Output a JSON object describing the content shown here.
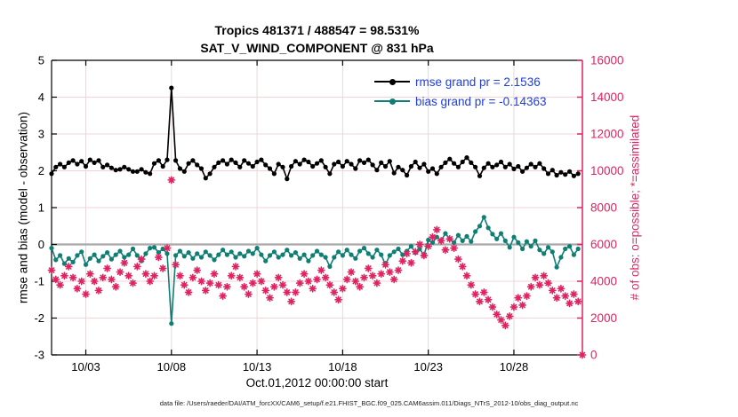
{
  "footer": {
    "text": "data file: /Users/raeder/DAI/ATM_forcXX/CAM6_setup/f.e21.FHIST_BGC.f09_025.CAM6assim.011/Diags_NTrS_2012-10/obs_diag_output.nc"
  },
  "chart_data": {
    "type": "line",
    "title": "Tropics 481371 / 488547 = 98.531%",
    "subtitle": "SAT_V_WIND_COMPONENT @ 831 hPa",
    "xlabel": "Oct.01,2012 00:00:00 start",
    "ylabel_left": "rmse and bias (model - observation)",
    "ylabel_right": "# of obs: o=possible; *=assimilated",
    "xlim": [
      0,
      31
    ],
    "x_unit_note": "days since Oct 1 2012 00:00, points every 0.25 day",
    "x_start": 0,
    "x_step": 0.25,
    "x_ticks": [
      {
        "pos": 2,
        "label": "10/03"
      },
      {
        "pos": 7,
        "label": "10/08"
      },
      {
        "pos": 12,
        "label": "10/13"
      },
      {
        "pos": 17,
        "label": "10/18"
      },
      {
        "pos": 22,
        "label": "10/23"
      },
      {
        "pos": 27,
        "label": "10/28"
      }
    ],
    "ylim_left": [
      -3,
      5
    ],
    "yticks_left": [
      -3,
      -2,
      -1,
      0,
      1,
      2,
      3,
      4,
      5
    ],
    "ylim_right": [
      0,
      16000
    ],
    "yticks_right": [
      0,
      2000,
      4000,
      6000,
      8000,
      10000,
      12000,
      14000,
      16000
    ],
    "grid": true,
    "zero_line": 0,
    "legend_position": "top-right-inside",
    "colors": {
      "rmse": "#000000",
      "bias": "#0f7f76",
      "obs": "#df2360",
      "legend_text": "#1f3de0",
      "right_axis": "#df2360",
      "grid_h": "#f3d2d8",
      "grid_v": "#e4dadc",
      "zero_line": "#a8a8a8",
      "spine": "#000000"
    },
    "series": [
      {
        "name": "rmse",
        "legend_label": "rmse grand pr = 2.1536",
        "axis": "left",
        "marker": "dot",
        "line": true,
        "color": "#000000",
        "values": [
          1.92,
          2.1,
          2.18,
          2.1,
          2.22,
          2.28,
          2.18,
          2.26,
          2.12,
          2.3,
          2.22,
          2.28,
          2.1,
          2.16,
          2.08,
          2.02,
          2.04,
          2.1,
          2.04,
          1.98,
          1.98,
          2.04,
          1.96,
          1.92,
          2.2,
          2.28,
          2.12,
          2.3,
          4.25,
          2.28,
          2.06,
          1.98,
          2.2,
          2.28,
          2.16,
          2.06,
          1.8,
          1.92,
          2.1,
          2.22,
          2.28,
          2.18,
          2.3,
          2.22,
          2.1,
          2.28,
          2.2,
          2.12,
          2.24,
          2.3,
          2.16,
          2.06,
          1.92,
          2.18,
          2.1,
          1.78,
          2.12,
          2.26,
          2.18,
          2.3,
          2.24,
          2.12,
          2.2,
          2.28,
          2.1,
          1.92,
          2.18,
          2.24,
          2.12,
          2.26,
          2.18,
          2.06,
          2.28,
          2.22,
          2.3,
          2.16,
          2.02,
          2.22,
          2.12,
          2.26,
          1.94,
          2.1,
          2.02,
          1.88,
          2.12,
          2.24,
          2.08,
          2.18,
          1.98,
          2.06,
          1.92,
          2.1,
          2.22,
          2.32,
          2.2,
          2.1,
          2.24,
          2.36,
          2.22,
          2.1,
          1.86,
          2.08,
          2.2,
          2.1,
          2.16,
          2.24,
          2.1,
          2.18,
          2.05,
          2.12,
          1.98,
          2.08,
          2.18,
          2.1,
          2.2,
          2.06,
          1.92,
          2.02,
          1.88,
          1.96,
          1.9,
          1.98,
          1.86,
          1.92,
          null
        ]
      },
      {
        "name": "bias",
        "legend_label": "bias grand pr = -0.14363",
        "axis": "left",
        "marker": "dot",
        "line": true,
        "color": "#0f7f76",
        "values": [
          -0.1,
          -0.42,
          -0.3,
          -0.52,
          -0.38,
          -0.48,
          -0.3,
          -0.2,
          -0.55,
          -0.38,
          -0.28,
          -0.45,
          -0.32,
          -0.22,
          -0.4,
          -0.28,
          -0.18,
          -0.35,
          -0.28,
          -0.12,
          -0.3,
          -0.45,
          -0.25,
          -0.1,
          -0.08,
          -0.22,
          -0.12,
          -0.25,
          -2.15,
          -0.3,
          -0.18,
          -0.32,
          -0.22,
          -0.38,
          -0.25,
          -0.35,
          -0.2,
          -0.3,
          -0.42,
          -0.28,
          -0.15,
          -0.28,
          -0.2,
          -0.35,
          -0.25,
          -0.32,
          -0.18,
          -0.25,
          -0.1,
          -0.28,
          -0.45,
          -0.3,
          -0.2,
          -0.35,
          -0.28,
          -0.15,
          -0.3,
          -0.22,
          -0.38,
          -0.28,
          -0.45,
          -0.3,
          -0.18,
          -0.28,
          -0.35,
          -0.6,
          -0.35,
          -0.2,
          -0.3,
          -0.15,
          -0.28,
          -0.38,
          -0.18,
          -0.1,
          -0.25,
          -0.35,
          -0.15,
          -0.28,
          -0.55,
          -0.3,
          -0.2,
          -0.12,
          -0.28,
          -0.18,
          -0.05,
          -0.22,
          -0.12,
          -0.3,
          0.12,
          0.05,
          0.2,
          0.1,
          0.3,
          0.15,
          0.05,
          0.25,
          0.1,
          0.22,
          0.08,
          0.35,
          0.5,
          0.74,
          0.45,
          0.28,
          0.15,
          0.3,
          0.1,
          -0.08,
          0.2,
          0.05,
          -0.12,
          0.08,
          -0.05,
          0.1,
          -0.15,
          -0.25,
          -0.08,
          -0.2,
          -0.62,
          -0.35,
          -0.12,
          -0.05,
          -0.28,
          -0.12,
          null
        ]
      },
      {
        "name": "obs_count",
        "legend_label": null,
        "axis": "right",
        "marker": "asterisk",
        "line": false,
        "color": "#df2360",
        "values": [
          4600,
          4100,
          3800,
          4300,
          4800,
          4200,
          3600,
          4000,
          3300,
          4400,
          4000,
          3500,
          4200,
          4700,
          4100,
          3700,
          4500,
          5000,
          4300,
          3900,
          4800,
          5200,
          4400,
          4000,
          4300,
          5300,
          4700,
          5800,
          9500,
          4900,
          4300,
          3800,
          3400,
          4200,
          4600,
          4000,
          3500,
          3900,
          4400,
          3800,
          3200,
          3700,
          4300,
          4800,
          4200,
          3700,
          3300,
          3900,
          4400,
          4000,
          3500,
          3100,
          3700,
          4200,
          3800,
          3400,
          2900,
          3400,
          3900,
          4400,
          4000,
          3600,
          4100,
          4600,
          4200,
          3800,
          3400,
          3000,
          3600,
          4100,
          4500,
          4000,
          3700,
          4200,
          4700,
          4300,
          3900,
          4400,
          4900,
          4500,
          4100,
          4600,
          5100,
          5500,
          5000,
          5600,
          6000,
          5400,
          5900,
          6400,
          6800,
          6200,
          5700,
          6300,
          5800,
          5200,
          4800,
          4300,
          3800,
          3300,
          2900,
          3400,
          3000,
          2600,
          2200,
          1900,
          1600,
          2100,
          2600,
          3100,
          2700,
          3200,
          3700,
          4200,
          3800,
          4300,
          3900,
          3500,
          3100,
          3600,
          3200,
          2800,
          3300,
          2900,
          0
        ]
      }
    ]
  }
}
